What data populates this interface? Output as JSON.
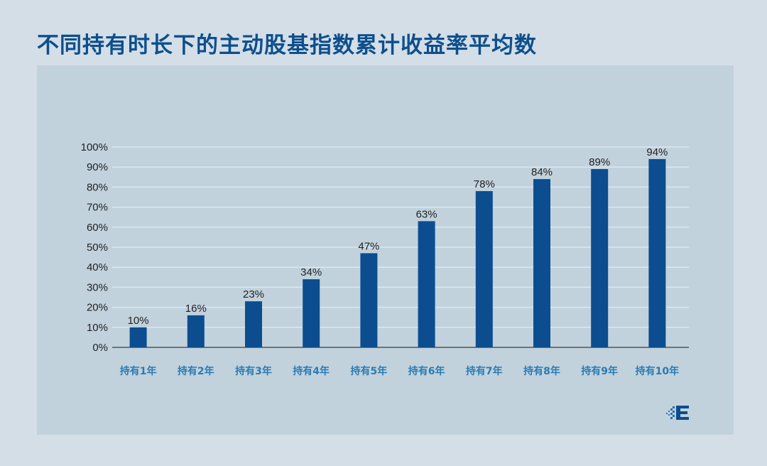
{
  "title": "不同持有时长下的主动股基指数累计收益率平均数",
  "colors": {
    "bar": "#0b4d8f",
    "title": "#0d4f8c",
    "xlabel": "#2a7bb2",
    "grid": "#dde7ee",
    "panel": "#c1d2dd"
  },
  "logo_icon": "pixel-e-logo-icon",
  "chart_data": {
    "type": "bar",
    "title": "不同持有时长下的主动股基指数累计收益率平均数",
    "categories": [
      "持有1年",
      "持有2年",
      "持有3年",
      "持有4年",
      "持有5年",
      "持有6年",
      "持有7年",
      "持有8年",
      "持有9年",
      "持有10年"
    ],
    "values": [
      10,
      16,
      23,
      34,
      47,
      63,
      78,
      84,
      89,
      94
    ],
    "data_labels": [
      "10%",
      "16%",
      "23%",
      "34%",
      "47%",
      "63%",
      "78%",
      "84%",
      "89%",
      "94%"
    ],
    "ylim": [
      0,
      100
    ],
    "yticks": [
      0,
      10,
      20,
      30,
      40,
      50,
      60,
      70,
      80,
      90,
      100
    ],
    "ytick_labels": [
      "0%",
      "10%",
      "20%",
      "30%",
      "40%",
      "50%",
      "60%",
      "70%",
      "80%",
      "90%",
      "100%"
    ],
    "xlabel": "",
    "ylabel": "",
    "grid": true,
    "legend": "none"
  }
}
